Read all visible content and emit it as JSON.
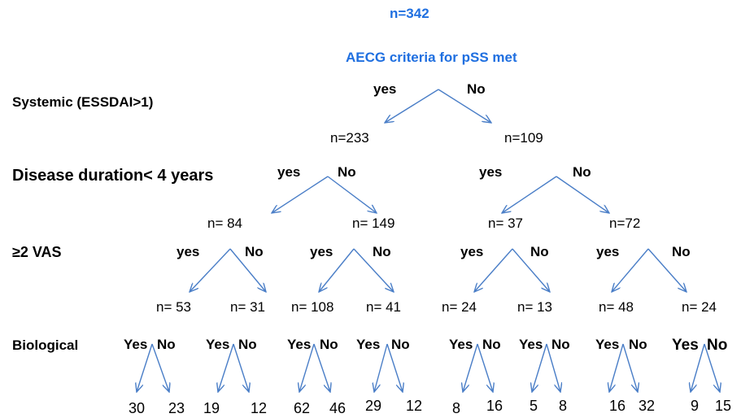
{
  "root": {
    "total": "n=342",
    "title": "AECG criteria for pSS met"
  },
  "levels": {
    "systemic": "Systemic (ESSDAI>1)",
    "duration": "Disease duration< 4 years",
    "vas": "≥2 VAS",
    "biological": "Biological"
  },
  "level1": {
    "yes": "yes",
    "no": "No",
    "left": "n=233",
    "right": "n=109"
  },
  "level2": [
    {
      "yes": "yes",
      "no": "No",
      "left": "n= 84",
      "right": "n= 149"
    },
    {
      "yes": "yes",
      "no": "No",
      "left": "n= 37",
      "right": "n=72"
    }
  ],
  "level3": [
    {
      "yes": "yes",
      "no": "No",
      "left": "n= 53",
      "right": "n= 31"
    },
    {
      "yes": "yes",
      "no": "No",
      "left": "n= 108",
      "right": "n= 41"
    },
    {
      "yes": "yes",
      "no": "No",
      "left": "n= 24",
      "right": "n= 13"
    },
    {
      "yes": "yes",
      "no": "No",
      "left": "n= 48",
      "right": "n= 24"
    }
  ],
  "level4": [
    {
      "yes": "Yes",
      "no": "No",
      "left": "30",
      "right": "23"
    },
    {
      "yes": "Yes",
      "no": "No",
      "left": "19",
      "right": "12"
    },
    {
      "yes": "Yes",
      "no": "No",
      "left": "62",
      "right": "46"
    },
    {
      "yes": "Yes",
      "no": "No",
      "left": "29",
      "right": "12"
    },
    {
      "yes": "Yes",
      "no": "No",
      "left": "8",
      "right": "16"
    },
    {
      "yes": "Yes",
      "no": "No",
      "left": "5",
      "right": "8"
    },
    {
      "yes": "Yes",
      "no": "No",
      "left": "16",
      "right": "32"
    },
    {
      "yes": "Yes",
      "no": "No",
      "left": "9",
      "right": "15"
    }
  ],
  "colors": {
    "arrow": "#4a7ec7",
    "heading": "#1f6fe0",
    "text": "#000000"
  }
}
